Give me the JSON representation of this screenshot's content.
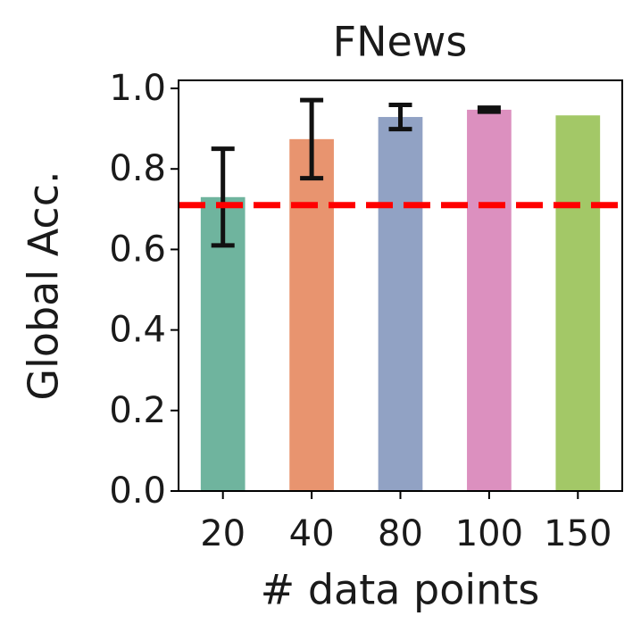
{
  "chart_data": {
    "type": "bar",
    "title": "FNews",
    "xlabel": "# data points",
    "ylabel": "Global Acc.",
    "categories": [
      "20",
      "40",
      "80",
      "100",
      "150"
    ],
    "values": [
      0.73,
      0.874,
      0.929,
      0.947,
      0.933
    ],
    "errors": [
      0.12,
      0.097,
      0.03,
      0.005,
      null
    ],
    "colors": [
      "#6fb49e",
      "#e8946f",
      "#91a2c4",
      "#dc90bf",
      "#a3c867"
    ],
    "ylim": [
      0,
      1.02
    ],
    "yticks": [
      {
        "value": 0,
        "label": "0.0"
      },
      {
        "value": 0.2,
        "label": "0.2"
      },
      {
        "value": 0.4,
        "label": "0.4"
      },
      {
        "value": 0.6,
        "label": "0.6"
      },
      {
        "value": 0.8,
        "label": "0.8"
      },
      {
        "value": 1.0,
        "label": "1.0"
      }
    ],
    "hline": {
      "value": 0.71,
      "color": "#ff0000"
    }
  }
}
